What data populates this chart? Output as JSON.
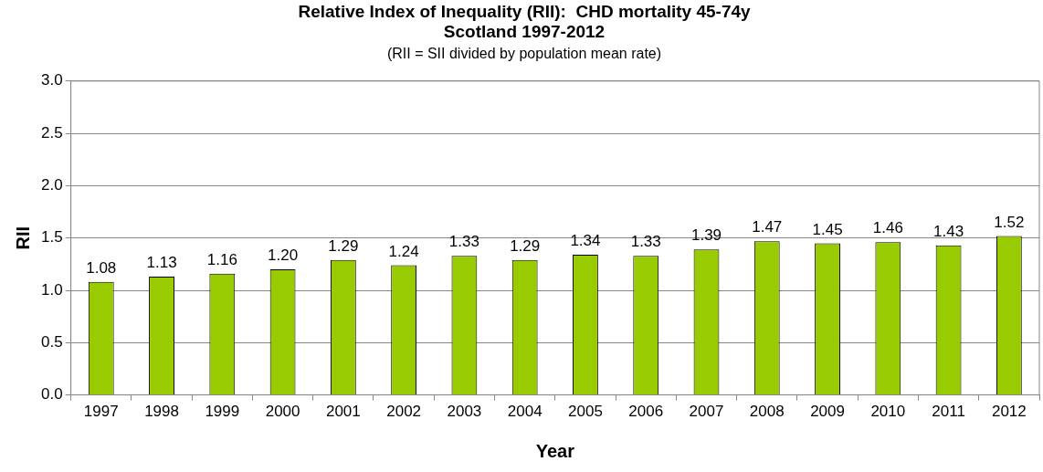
{
  "chart_data": {
    "type": "bar",
    "title": "Relative Index of Inequality (RII):  CHD mortality 45-74y\nScotland 1997-2012",
    "subtitle": "(RII = SII divided by population mean rate)",
    "xlabel": "Year",
    "ylabel": "RII",
    "categories": [
      "1997",
      "1998",
      "1999",
      "2000",
      "2001",
      "2002",
      "2003",
      "2004",
      "2005",
      "2006",
      "2007",
      "2008",
      "2009",
      "2010",
      "2011",
      "2012"
    ],
    "values": [
      1.08,
      1.13,
      1.16,
      1.2,
      1.29,
      1.24,
      1.33,
      1.29,
      1.34,
      1.33,
      1.39,
      1.47,
      1.45,
      1.46,
      1.43,
      1.52
    ],
    "value_labels": [
      "1.08",
      "1.13",
      "1.16",
      "1.20",
      "1.29",
      "1.24",
      "1.33",
      "1.29",
      "1.34",
      "1.33",
      "1.39",
      "1.47",
      "1.45",
      "1.46",
      "1.43",
      "1.52"
    ],
    "color": "#99cc00",
    "ylim": [
      0,
      3
    ],
    "yticks": [
      {
        "value": 0,
        "label": "0.0"
      },
      {
        "value": 0.5,
        "label": "0.5"
      },
      {
        "value": 1,
        "label": "1.0"
      },
      {
        "value": 1.5,
        "label": "1.5"
      },
      {
        "value": 2,
        "label": "2.0"
      },
      {
        "value": 2.5,
        "label": "2.5"
      },
      {
        "value": 3,
        "label": "3.0"
      }
    ],
    "grid": "y",
    "legend": false
  }
}
